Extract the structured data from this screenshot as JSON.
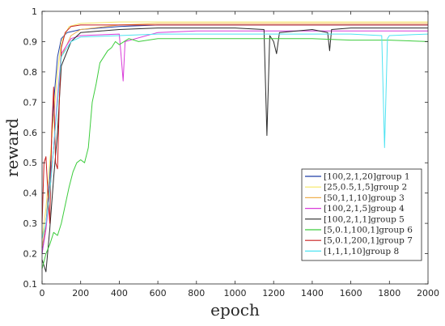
{
  "chart_data": {
    "type": "line",
    "title": "",
    "xlabel": "epoch",
    "ylabel": "reward",
    "xlim": [
      0,
      2000
    ],
    "ylim": [
      0.1,
      1
    ],
    "xticks": [
      0,
      200,
      400,
      600,
      800,
      1000,
      1200,
      1400,
      1600,
      1800,
      2000
    ],
    "yticks": [
      0.1,
      0.2,
      0.3,
      0.4,
      0.5,
      0.6,
      0.7,
      0.8,
      0.9,
      1
    ],
    "xtick_labels": [
      "0",
      "200",
      "400",
      "600",
      "800",
      "1000",
      "1200",
      "1400",
      "1600",
      "1800",
      "2000"
    ],
    "ytick_labels": [
      "0.1",
      "0.2",
      "0.3",
      "0.4",
      "0.5",
      "0.6",
      "0.7",
      "0.8",
      "0.9",
      "1"
    ],
    "grid": false,
    "legend_position": "lower-right",
    "series": [
      {
        "name": "[100,2,1,20]group 1",
        "color": "#1f3fa8",
        "x": [
          0,
          20,
          40,
          60,
          80,
          100,
          130,
          200,
          400,
          600,
          800,
          1000,
          1200,
          1400,
          1600,
          1800,
          2000
        ],
        "y": [
          0.2,
          0.3,
          0.45,
          0.7,
          0.85,
          0.91,
          0.93,
          0.94,
          0.95,
          0.955,
          0.955,
          0.955,
          0.955,
          0.955,
          0.955,
          0.955,
          0.955
        ]
      },
      {
        "name": "[25,0.5,1,5]group 2",
        "color": "#f5e663",
        "x": [
          0,
          20,
          40,
          60,
          80,
          100,
          140,
          200,
          400,
          600,
          800,
          1000,
          1200,
          1400,
          1600,
          1800,
          2000
        ],
        "y": [
          0.25,
          0.35,
          0.5,
          0.65,
          0.8,
          0.9,
          0.95,
          0.96,
          0.965,
          0.965,
          0.965,
          0.965,
          0.965,
          0.965,
          0.965,
          0.965,
          0.965
        ]
      },
      {
        "name": "[50,1,1,10]group 3",
        "color": "#f0b050",
        "x": [
          0,
          20,
          40,
          60,
          80,
          100,
          150,
          200,
          400,
          600,
          800,
          1000,
          1200,
          1400,
          1600,
          1800,
          2000
        ],
        "y": [
          0.22,
          0.3,
          0.42,
          0.55,
          0.7,
          0.85,
          0.92,
          0.94,
          0.955,
          0.96,
          0.96,
          0.96,
          0.96,
          0.96,
          0.96,
          0.96,
          0.96
        ]
      },
      {
        "name": "[100,2,1,5]group 4",
        "color": "#d93bd9",
        "x": [
          0,
          20,
          40,
          60,
          80,
          100,
          150,
          200,
          400,
          410,
          420,
          430,
          600,
          800,
          1000,
          1200,
          1400,
          1600,
          1800,
          2000
        ],
        "y": [
          0.2,
          0.28,
          0.4,
          0.55,
          0.72,
          0.86,
          0.91,
          0.92,
          0.925,
          0.85,
          0.77,
          0.9,
          0.93,
          0.935,
          0.935,
          0.935,
          0.935,
          0.935,
          0.935,
          0.935
        ]
      },
      {
        "name": "[100,2,1,1]group 5",
        "color": "#2a2a2a",
        "x": [
          0,
          20,
          40,
          60,
          80,
          100,
          150,
          200,
          400,
          600,
          800,
          1000,
          1150,
          1165,
          1180,
          1200,
          1215,
          1230,
          1400,
          1480,
          1490,
          1500,
          1600,
          1800,
          2000
        ],
        "y": [
          0.18,
          0.14,
          0.28,
          0.45,
          0.6,
          0.82,
          0.9,
          0.93,
          0.94,
          0.945,
          0.945,
          0.945,
          0.94,
          0.59,
          0.92,
          0.9,
          0.86,
          0.93,
          0.94,
          0.93,
          0.87,
          0.94,
          0.945,
          0.945,
          0.945
        ]
      },
      {
        "name": "[5,0.1,100,1]group 6",
        "color": "#3ccc3c",
        "x": [
          0,
          20,
          40,
          60,
          80,
          100,
          120,
          140,
          160,
          180,
          200,
          220,
          240,
          260,
          280,
          300,
          320,
          340,
          360,
          380,
          400,
          450,
          500,
          600,
          800,
          1000,
          1200,
          1400,
          1600,
          1800,
          2000
        ],
        "y": [
          0.15,
          0.2,
          0.23,
          0.27,
          0.26,
          0.3,
          0.36,
          0.42,
          0.47,
          0.5,
          0.51,
          0.5,
          0.55,
          0.7,
          0.76,
          0.83,
          0.85,
          0.87,
          0.88,
          0.9,
          0.89,
          0.91,
          0.9,
          0.91,
          0.91,
          0.91,
          0.91,
          0.91,
          0.905,
          0.905,
          0.9
        ]
      },
      {
        "name": "[5,0.1,200,1]group 7",
        "color": "#c81e1e",
        "x": [
          0,
          10,
          20,
          30,
          40,
          50,
          60,
          70,
          80,
          90,
          100,
          120,
          150,
          200,
          400,
          600,
          800,
          1000,
          1200,
          1400,
          1600,
          1800,
          2000
        ],
        "y": [
          0.3,
          0.5,
          0.52,
          0.4,
          0.3,
          0.6,
          0.75,
          0.5,
          0.48,
          0.72,
          0.88,
          0.93,
          0.95,
          0.955,
          0.955,
          0.955,
          0.955,
          0.955,
          0.955,
          0.955,
          0.955,
          0.955,
          0.955
        ]
      },
      {
        "name": "[1,1,1,10]group 8",
        "color": "#4fe3f2",
        "x": [
          0,
          20,
          40,
          60,
          80,
          100,
          150,
          200,
          400,
          600,
          800,
          1000,
          1200,
          1400,
          1600,
          1760,
          1775,
          1790,
          1800,
          2000
        ],
        "y": [
          0.25,
          0.3,
          0.4,
          0.55,
          0.7,
          0.85,
          0.9,
          0.915,
          0.92,
          0.925,
          0.925,
          0.925,
          0.925,
          0.925,
          0.925,
          0.92,
          0.55,
          0.91,
          0.92,
          0.925
        ]
      }
    ]
  }
}
